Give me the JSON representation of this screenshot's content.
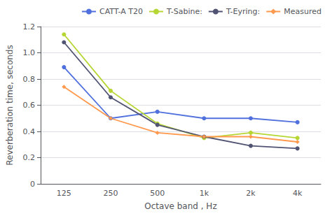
{
  "chart_data": {
    "type": "line",
    "categories": [
      "125",
      "250",
      "500",
      "1k",
      "2k",
      "4k"
    ],
    "series": [
      {
        "name": "CATT-A T20",
        "values": [
          0.89,
          0.5,
          0.55,
          0.5,
          0.5,
          0.47
        ],
        "marker": "circle"
      },
      {
        "name": "T-Sabine:",
        "values": [
          1.14,
          0.71,
          0.46,
          0.35,
          0.39,
          0.35
        ],
        "marker": "circle"
      },
      {
        "name": "T-Eyring:",
        "values": [
          1.08,
          0.66,
          0.45,
          0.36,
          0.29,
          0.27
        ],
        "marker": "circle"
      },
      {
        "name": "Measured",
        "values": [
          0.74,
          0.5,
          0.39,
          0.36,
          0.36,
          0.32
        ],
        "marker": "diamond"
      }
    ],
    "x_label": "Octave band , Hz",
    "y_label": "Reverberation time, seconds",
    "ylim": [
      0,
      1.2
    ],
    "yticks": [
      0,
      0.2,
      0.4,
      0.6,
      0.8,
      {
        "value": 1.0,
        "label": "1.0"
      },
      1.2
    ],
    "grid": true,
    "legend": "upper right"
  }
}
